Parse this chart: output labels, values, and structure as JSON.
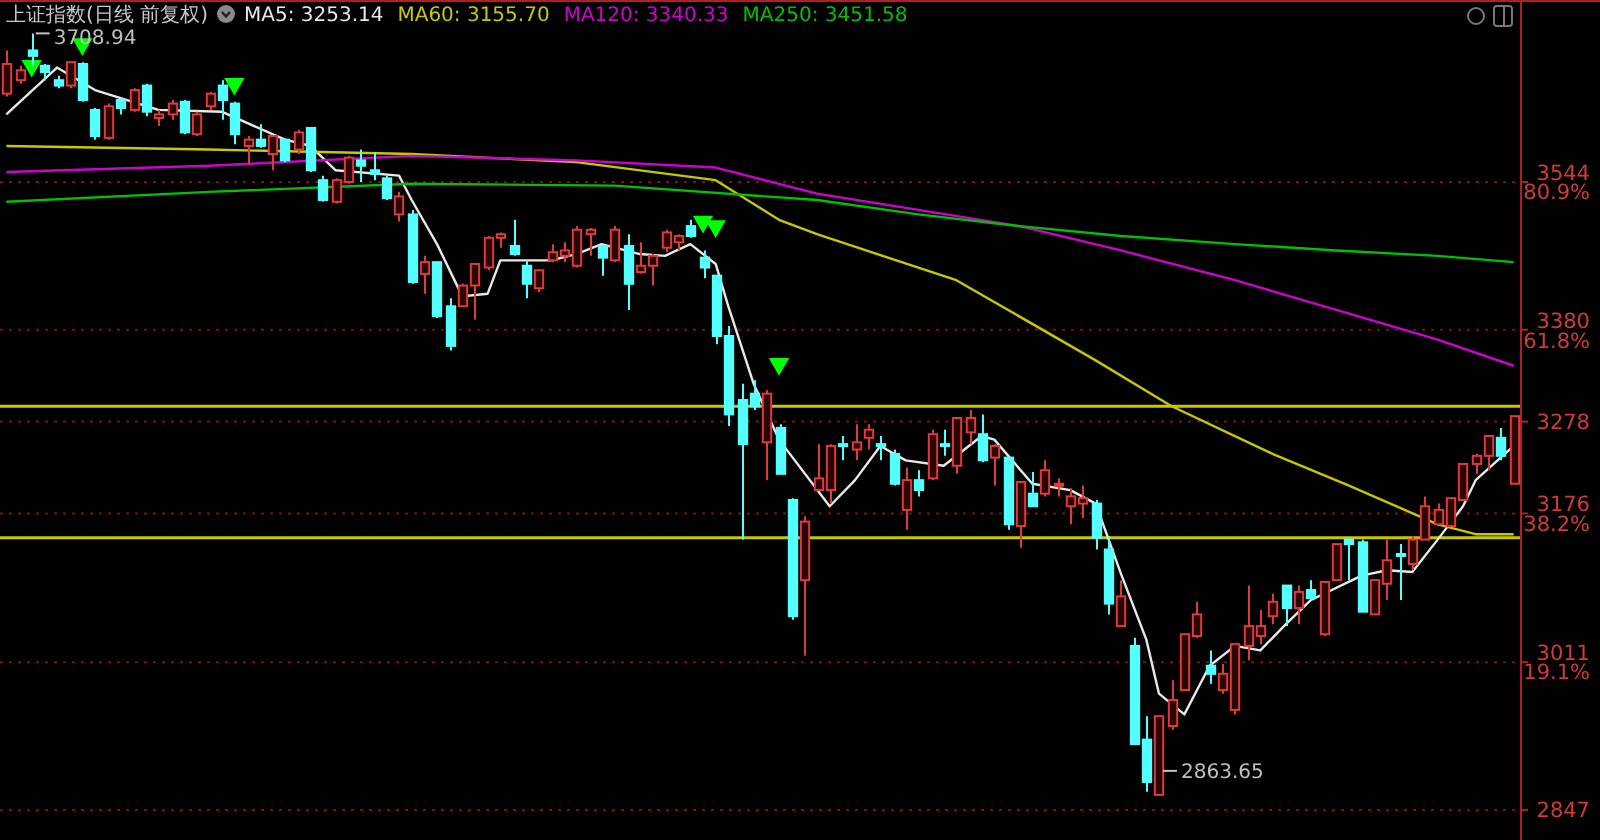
{
  "chart_data": {
    "type": "candlestick",
    "title": "上证指数(日线 前复权)",
    "categories": [
      null,
      null,
      null,
      null,
      null,
      null,
      null,
      null,
      null,
      null,
      null,
      null,
      null,
      null,
      null,
      null,
      null,
      null,
      null,
      null,
      null,
      null,
      null,
      null,
      null,
      null,
      null,
      null,
      null,
      null,
      null,
      null,
      null,
      null,
      null,
      null,
      null,
      null,
      null,
      null,
      null,
      null,
      null,
      null,
      null,
      null,
      null,
      null,
      null,
      null,
      null,
      null,
      null,
      null,
      null,
      null,
      null,
      null,
      null,
      null,
      null,
      null,
      null,
      null,
      null,
      null,
      null,
      null,
      null,
      null,
      null,
      null,
      null,
      null,
      null,
      null,
      null,
      null,
      null,
      null,
      null,
      null,
      null,
      null,
      null,
      null,
      null,
      null,
      null,
      null,
      null,
      null,
      null,
      null,
      null,
      null,
      null,
      null,
      null,
      null,
      null,
      null,
      null,
      null,
      null,
      null,
      null,
      null,
      null,
      null,
      null,
      null,
      null,
      null,
      null,
      null,
      null,
      null,
      null,
      null
    ],
    "ohlc": [
      [
        3642,
        3690,
        3639,
        3675
      ],
      [
        3657,
        3673,
        3653,
        3668
      ],
      [
        3690,
        3708.94,
        3673,
        3684
      ],
      [
        3673,
        3675,
        3657,
        3666
      ],
      [
        3657,
        3662,
        3648,
        3651
      ],
      [
        3651,
        3677,
        3648,
        3677
      ],
      [
        3675,
        3677,
        3633,
        3635
      ],
      [
        3624,
        3626,
        3591,
        3595
      ],
      [
        3593,
        3631,
        3591,
        3628
      ],
      [
        3635,
        3637,
        3619,
        3626
      ],
      [
        3624,
        3648,
        3622,
        3646
      ],
      [
        3651,
        3653,
        3617,
        3622
      ],
      [
        3615,
        3624,
        3606,
        3619
      ],
      [
        3619,
        3635,
        3613,
        3631
      ],
      [
        3633,
        3635,
        3597,
        3599
      ],
      [
        3597,
        3622,
        3595,
        3619
      ],
      [
        3628,
        3644,
        3624,
        3642
      ],
      [
        3651,
        3657,
        3613,
        3635
      ],
      [
        3631,
        3633,
        3586,
        3597
      ],
      [
        3584,
        3595,
        3564,
        3591
      ],
      [
        3591,
        3608,
        3582,
        3584
      ],
      [
        3575,
        3595,
        3557,
        3595
      ],
      [
        3591,
        3591,
        3566,
        3568
      ],
      [
        3580,
        3602,
        3575,
        3599
      ],
      [
        3604,
        3604,
        3555,
        3557
      ],
      [
        3546,
        3551,
        3522,
        3524
      ],
      [
        3522,
        3548,
        3520,
        3546
      ],
      [
        3544,
        3573,
        3542,
        3571
      ],
      [
        3568,
        3580,
        3544,
        3562
      ],
      [
        3557,
        3577,
        3546,
        3553
      ],
      [
        3548,
        3551,
        3524,
        3526
      ],
      [
        3508,
        3533,
        3500,
        3528
      ],
      [
        3508,
        3513,
        3431,
        3433
      ],
      [
        3442,
        3462,
        3420,
        3455
      ],
      [
        3455,
        3455,
        3393,
        3395
      ],
      [
        3406,
        3415,
        3357,
        3362
      ],
      [
        3406,
        3431,
        3406,
        3429
      ],
      [
        3429,
        3453,
        3391,
        3453
      ],
      [
        3449,
        3484,
        3446,
        3482
      ],
      [
        3482,
        3488,
        3471,
        3486
      ],
      [
        3473,
        3502,
        3462,
        3464
      ],
      [
        3451,
        3457,
        3415,
        3431
      ],
      [
        3426,
        3446,
        3422,
        3446
      ],
      [
        3457,
        3475,
        3455,
        3466
      ],
      [
        3462,
        3477,
        3455,
        3468
      ],
      [
        3451,
        3495,
        3449,
        3491
      ],
      [
        3486,
        3493,
        3462,
        3491
      ],
      [
        3473,
        3473,
        3440,
        3460
      ],
      [
        3457,
        3495,
        3455,
        3491
      ],
      [
        3473,
        3486,
        3402,
        3431
      ],
      [
        3444,
        3477,
        3442,
        3451
      ],
      [
        3451,
        3464,
        3429,
        3462
      ],
      [
        3471,
        3491,
        3466,
        3488
      ],
      [
        3477,
        3486,
        3468,
        3484
      ],
      [
        3495,
        3502,
        3482,
        3484
      ],
      [
        3460,
        3468,
        3437,
        3449
      ],
      [
        3440,
        3440,
        3364,
        3373
      ],
      [
        3373,
        3384,
        3273,
        3286
      ],
      [
        3302,
        3320,
        3147,
        3253
      ],
      [
        3309,
        3324,
        3291,
        3295
      ],
      [
        3255,
        3313,
        3213,
        3309
      ],
      [
        3271,
        3275,
        3220,
        3220
      ],
      [
        3191,
        3193,
        3058,
        3062
      ],
      [
        3102,
        3173,
        3018,
        3167
      ],
      [
        3202,
        3253,
        3202,
        3215
      ],
      [
        3202,
        3253,
        3187,
        3251
      ],
      [
        3253,
        3262,
        3235,
        3251
      ],
      [
        3247,
        3275,
        3235,
        3255
      ],
      [
        3260,
        3275,
        3247,
        3269
      ],
      [
        3253,
        3262,
        3235,
        3251
      ],
      [
        3242,
        3247,
        3207,
        3209
      ],
      [
        3180,
        3227,
        3158,
        3213
      ],
      [
        3213,
        3224,
        3195,
        3202
      ],
      [
        3215,
        3269,
        3213,
        3264
      ],
      [
        3253,
        3269,
        3240,
        3251
      ],
      [
        3229,
        3282,
        3220,
        3282
      ],
      [
        3266,
        3291,
        3253,
        3282
      ],
      [
        3264,
        3286,
        3233,
        3235
      ],
      [
        3238,
        3253,
        3207,
        3251
      ],
      [
        3238,
        3238,
        3158,
        3164
      ],
      [
        3162,
        3211,
        3138,
        3211
      ],
      [
        3198,
        3222,
        3184,
        3184
      ],
      [
        3198,
        3235,
        3195,
        3224
      ],
      [
        3207,
        3215,
        3195,
        3209
      ],
      [
        3184,
        3204,
        3164,
        3195
      ],
      [
        3187,
        3207,
        3171,
        3193
      ],
      [
        3187,
        3191,
        3136,
        3149
      ],
      [
        3136,
        3151,
        3064,
        3076
      ],
      [
        3051,
        3102,
        3051,
        3084
      ],
      [
        3029,
        3038,
        2920,
        2920
      ],
      [
        2925,
        2951,
        2867,
        2878
      ],
      [
        2863.65,
        2951,
        2863.65,
        2951
      ],
      [
        2940,
        2991,
        2936,
        2969
      ],
      [
        2980,
        3042,
        2980,
        3042
      ],
      [
        3040,
        3078,
        3038,
        3064
      ],
      [
        3007,
        3024,
        2987,
        2998
      ],
      [
        2980,
        3009,
        2976,
        2998
      ],
      [
        2958,
        3031,
        2953,
        3031
      ],
      [
        3029,
        3096,
        3013,
        3051
      ],
      [
        3040,
        3069,
        3031,
        3051
      ],
      [
        3062,
        3087,
        3053,
        3078
      ],
      [
        3096,
        3096,
        3051,
        3071
      ],
      [
        3071,
        3096,
        3053,
        3089
      ],
      [
        3091,
        3102,
        3080,
        3082
      ],
      [
        3042,
        3100,
        3040,
        3100
      ],
      [
        3102,
        3142,
        3102,
        3142
      ],
      [
        3147,
        3147,
        3102,
        3142
      ],
      [
        3144,
        3147,
        3067,
        3067
      ],
      [
        3064,
        3102,
        3064,
        3102
      ],
      [
        3098,
        3147,
        3080,
        3124
      ],
      [
        3131,
        3142,
        3080,
        3129
      ],
      [
        3120,
        3151,
        3113,
        3147
      ],
      [
        3147,
        3195,
        3147,
        3184
      ],
      [
        3164,
        3187,
        3164,
        3180
      ],
      [
        3162,
        3193,
        3162,
        3193
      ],
      [
        3191,
        3231,
        3191,
        3231
      ],
      [
        3231,
        3242,
        3220,
        3240
      ],
      [
        3240,
        3262,
        3224,
        3262
      ],
      [
        3260,
        3271,
        3235,
        3240
      ],
      [
        3209,
        3284,
        3209,
        3284
      ]
    ],
    "series": [
      {
        "type": "line",
        "name": "MA5: 3253.14",
        "color": "#e8e8e8",
        "values": [
          3619,
          null,
          null,
          null,
          3671,
          null,
          null,
          3646,
          null,
          null,
          null,
          null,
          3624,
          null,
          null,
          null,
          null,
          3622,
          null,
          null,
          null,
          null,
          3591,
          null,
          3584,
          null,
          3557,
          null,
          null,
          null,
          null,
          3551,
          3524,
          null,
          3475,
          null,
          3417,
          null,
          3420,
          3457,
          null,
          null,
          null,
          3457,
          null,
          3464,
          null,
          3475,
          null,
          null,
          3464,
          null,
          3462,
          null,
          3475,
          null,
          3453,
          3406,
          null,
          3320,
          null,
          3258,
          null,
          null,
          null,
          3184,
          null,
          3213,
          null,
          3251,
          null,
          3235,
          null,
          null,
          3229,
          null,
          null,
          3262,
          3258,
          null,
          null,
          3209,
          null,
          null,
          3202,
          null,
          3187,
          null,
          3109,
          null,
          3036,
          2976,
          null,
          2953,
          null,
          3007,
          null,
          3029,
          null,
          3024,
          null,
          3053,
          null,
          3080,
          null,
          null,
          null,
          3107,
          null,
          3113,
          null,
          3111,
          null,
          3147,
          null,
          3184,
          3213,
          null,
          null,
          3251
        ]
      },
      {
        "type": "line",
        "name": "MA60: 3155.70",
        "color": "#c8c800",
        "values": [
          3584,
          null,
          null,
          null,
          null,
          null,
          null,
          null,
          null,
          null,
          null,
          null,
          null,
          null,
          null,
          null,
          3580,
          null,
          null,
          null,
          null,
          null,
          null,
          null,
          null,
          null,
          null,
          null,
          null,
          null,
          null,
          null,
          3575,
          null,
          null,
          null,
          null,
          null,
          null,
          null,
          null,
          null,
          null,
          null,
          null,
          3566,
          null,
          null,
          null,
          null,
          null,
          null,
          null,
          null,
          null,
          null,
          3546,
          null,
          null,
          null,
          null,
          3502,
          null,
          null,
          3486,
          null,
          null,
          null,
          null,
          null,
          null,
          null,
          null,
          null,
          null,
          3435,
          null,
          null,
          null,
          null,
          null,
          null,
          null,
          null,
          null,
          null,
          3346,
          null,
          null,
          null,
          null,
          null,
          3295,
          null,
          null,
          null,
          null,
          null,
          null,
          null,
          3242,
          null,
          null,
          null,
          null,
          null,
          3207,
          null,
          null,
          null,
          null,
          null,
          null,
          3164,
          null,
          null,
          3153,
          null,
          null,
          3153
        ]
      },
      {
        "type": "line",
        "name": "MA120: 3340.33",
        "color": "#d000d0",
        "values": [
          3555,
          null,
          null,
          null,
          null,
          null,
          null,
          null,
          null,
          null,
          null,
          null,
          null,
          null,
          null,
          null,
          3562,
          null,
          null,
          null,
          null,
          null,
          null,
          null,
          null,
          null,
          null,
          null,
          null,
          null,
          null,
          null,
          3573,
          null,
          null,
          null,
          null,
          null,
          null,
          null,
          null,
          null,
          null,
          null,
          null,
          3568,
          null,
          null,
          null,
          null,
          null,
          null,
          null,
          null,
          null,
          null,
          3560,
          null,
          null,
          null,
          null,
          null,
          null,
          null,
          3531,
          null,
          null,
          null,
          null,
          null,
          null,
          null,
          3513,
          null,
          null,
          null,
          null,
          null,
          null,
          null,
          3495,
          null,
          null,
          null,
          null,
          null,
          null,
          null,
          3468,
          null,
          null,
          null,
          null,
          null,
          null,
          null,
          null,
          3435,
          null,
          null,
          null,
          null,
          null,
          null,
          null,
          3402,
          null,
          null,
          null,
          null,
          null,
          null,
          null,
          3369,
          null,
          null,
          null,
          null,
          null,
          3340
        ]
      },
      {
        "type": "line",
        "name": "MA250: 3451.58",
        "color": "#00c000",
        "values": [
          3522,
          null,
          null,
          null,
          null,
          null,
          null,
          null,
          null,
          null,
          null,
          null,
          null,
          null,
          null,
          null,
          3533,
          null,
          null,
          null,
          null,
          null,
          null,
          null,
          null,
          null,
          null,
          null,
          null,
          null,
          null,
          null,
          3542,
          null,
          null,
          null,
          null,
          null,
          null,
          null,
          null,
          null,
          null,
          null,
          null,
          null,
          null,
          null,
          3540,
          null,
          null,
          null,
          null,
          null,
          null,
          null,
          null,
          null,
          null,
          null,
          null,
          null,
          null,
          null,
          3524,
          null,
          null,
          null,
          null,
          null,
          null,
          null,
          3508,
          null,
          null,
          null,
          null,
          null,
          null,
          null,
          3495,
          null,
          null,
          null,
          null,
          null,
          null,
          null,
          3484,
          null,
          null,
          null,
          null,
          null,
          null,
          null,
          null,
          3475,
          null,
          null,
          null,
          null,
          null,
          null,
          null,
          3468,
          null,
          null,
          null,
          null,
          null,
          null,
          null,
          3462,
          null,
          null,
          null,
          null,
          null,
          3455
        ]
      },
      {
        "type": "scatter",
        "color": "#00ff00",
        "marker": "triangle",
        "values": [
          null,
          null,
          3673,
          null,
          null,
          null,
          3697,
          null,
          null,
          null,
          null,
          null,
          null,
          null,
          null,
          null,
          null,
          null,
          3653,
          null,
          null,
          null,
          null,
          null,
          null,
          null,
          null,
          null,
          null,
          null,
          null,
          null,
          null,
          null,
          null,
          null,
          null,
          null,
          null,
          null,
          null,
          null,
          null,
          null,
          null,
          null,
          null,
          null,
          null,
          null,
          null,
          null,
          null,
          null,
          null,
          3500,
          3495,
          null,
          null,
          null,
          null,
          3342,
          null,
          null,
          null,
          null,
          null,
          null,
          null,
          null,
          null,
          null,
          null,
          null,
          null,
          null,
          null,
          null,
          null,
          null,
          null,
          null,
          null,
          null,
          null,
          null,
          null,
          null,
          null,
          null,
          null,
          null,
          null,
          null,
          null,
          null,
          null,
          null,
          null,
          null,
          null,
          null,
          null,
          null,
          null,
          null,
          null,
          null,
          null,
          null,
          null,
          null,
          null,
          null,
          null,
          null,
          null,
          null,
          null,
          null
        ]
      }
    ],
    "ylim": [
      2818,
      3746
    ],
    "yticks": [
      3544,
      3380,
      3278,
      3176,
      3011,
      2847
    ],
    "y2lim": [
      -3.36,
      104.29
    ],
    "y2ticks": [
      {
        "value": 80.9,
        "label": "80.9%"
      },
      {
        "value": 61.8,
        "label": "61.8%"
      },
      {
        "value": 38.2,
        "label": "38.2%"
      },
      {
        "value": 19.1,
        "label": "19.1%"
      }
    ],
    "tick_labels": "y",
    "grid": "y",
    "legend": "top left",
    "ref_lines": [
      {
        "axis": "y",
        "value": 3295,
        "color": "#c8c800"
      },
      {
        "axis": "y",
        "value": 3149,
        "color": "#c8c800"
      }
    ],
    "annotations": [
      {
        "text": "3708.94",
        "y": 3708.94
      },
      "2863.65"
    ]
  }
}
